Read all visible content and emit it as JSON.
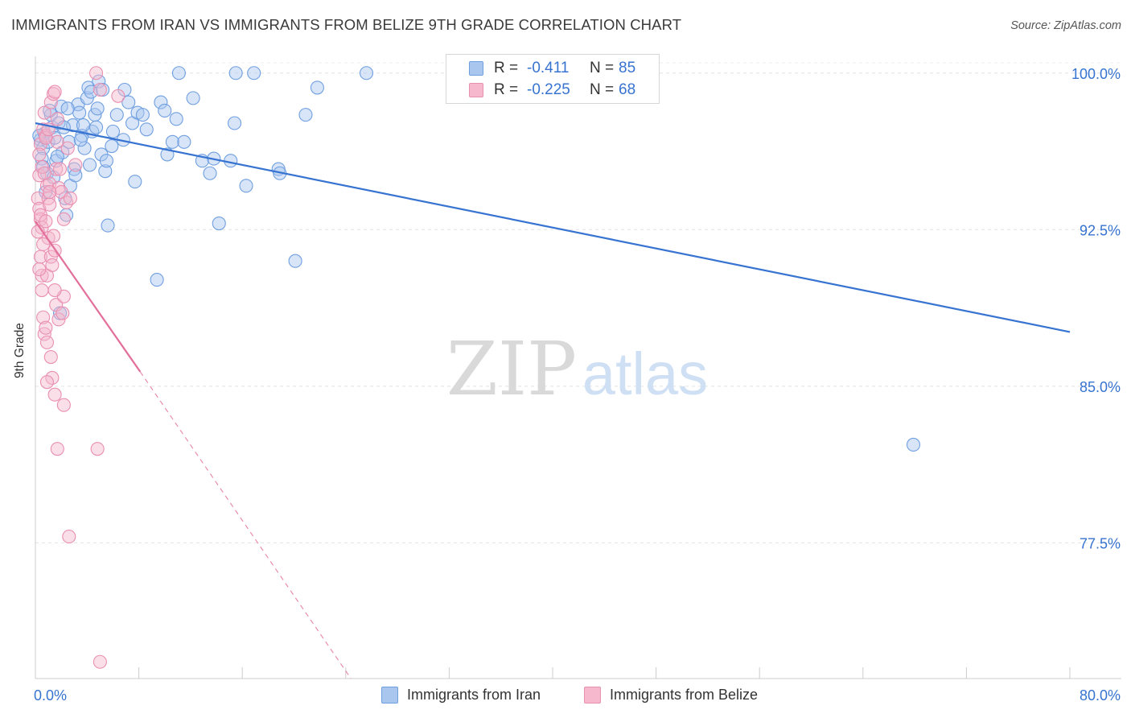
{
  "header": {
    "title": "IMMIGRANTS FROM IRAN VS IMMIGRANTS FROM BELIZE 9TH GRADE CORRELATION CHART",
    "source": "Source: ZipAtlas.com"
  },
  "watermark": {
    "zip": "ZIP",
    "atlas": "atlas"
  },
  "stats_box": {
    "rows": [
      {
        "r_label": "R =",
        "r_value": "-0.411",
        "n_label": "N =",
        "n_value": "85",
        "color": "#a9c6ef"
      },
      {
        "r_label": "R =",
        "r_value": "-0.225",
        "n_label": "N =",
        "n_value": "68",
        "color": "#f5b8cd"
      }
    ]
  },
  "legend": {
    "items": [
      {
        "label": "Immigrants from Iran",
        "color": "#a9c6ef"
      },
      {
        "label": "Immigrants from Belize",
        "color": "#f5b8cd"
      }
    ]
  },
  "chart_data": {
    "type": "scatter",
    "title": "IMMIGRANTS FROM IRAN VS IMMIGRANTS FROM BELIZE 9TH GRADE CORRELATION CHART",
    "xlabel": "",
    "ylabel": "9th Grade",
    "xlim": [
      0,
      80
    ],
    "ylim": [
      71.0,
      100.8
    ],
    "x_tick_labels": [
      "0.0%",
      "80.0%"
    ],
    "y_ticks": [
      77.5,
      85.0,
      92.5,
      100.0
    ],
    "y_tick_labels": [
      "77.5%",
      "85.0%",
      "92.5%",
      "100.0%"
    ],
    "grid": true,
    "legend_position": "bottom-center",
    "series": [
      {
        "name": "Immigrants from Iran",
        "color": "#6f9fe0",
        "fill": "#a9c6ef",
        "line_color": "#3773d0",
        "trend": {
          "x": [
            0,
            80
          ],
          "y": [
            97.6,
            87.6
          ],
          "style": "solid"
        },
        "points": [
          [
            0.4,
            96.8
          ],
          [
            0.6,
            96.4
          ],
          [
            0.5,
            95.9
          ],
          [
            0.7,
            97.1
          ],
          [
            0.9,
            95.2
          ],
          [
            1.0,
            96.7
          ],
          [
            1.2,
            98.0
          ],
          [
            1.3,
            97.4
          ],
          [
            1.5,
            96.9
          ],
          [
            1.6,
            95.8
          ],
          [
            1.8,
            97.6
          ],
          [
            2.0,
            98.4
          ],
          [
            2.1,
            96.2
          ],
          [
            2.3,
            94.0
          ],
          [
            2.4,
            93.2
          ],
          [
            2.6,
            96.7
          ],
          [
            2.7,
            94.6
          ],
          [
            2.9,
            97.5
          ],
          [
            3.0,
            95.4
          ],
          [
            3.1,
            95.1
          ],
          [
            3.3,
            98.5
          ],
          [
            3.4,
            98.1
          ],
          [
            3.6,
            97.0
          ],
          [
            3.8,
            96.4
          ],
          [
            4.0,
            98.8
          ],
          [
            4.1,
            99.3
          ],
          [
            4.3,
            99.1
          ],
          [
            4.4,
            97.2
          ],
          [
            4.6,
            98.0
          ],
          [
            4.7,
            97.4
          ],
          [
            4.9,
            99.6
          ],
          [
            5.1,
            96.1
          ],
          [
            5.2,
            99.2
          ],
          [
            5.4,
            95.3
          ],
          [
            5.5,
            95.8
          ],
          [
            5.6,
            92.7
          ],
          [
            6.0,
            97.2
          ],
          [
            6.3,
            98.0
          ],
          [
            6.8,
            96.8
          ],
          [
            6.9,
            99.2
          ],
          [
            7.2,
            98.6
          ],
          [
            7.5,
            97.6
          ],
          [
            7.7,
            94.8
          ],
          [
            7.9,
            98.1
          ],
          [
            8.3,
            98.0
          ],
          [
            8.6,
            97.3
          ],
          [
            9.4,
            90.1
          ],
          [
            9.7,
            98.6
          ],
          [
            10.0,
            98.2
          ],
          [
            10.2,
            96.1
          ],
          [
            10.6,
            96.7
          ],
          [
            10.9,
            97.8
          ],
          [
            11.1,
            100.0
          ],
          [
            11.5,
            96.7
          ],
          [
            12.2,
            98.8
          ],
          [
            12.9,
            95.8
          ],
          [
            13.5,
            95.2
          ],
          [
            13.8,
            95.9
          ],
          [
            14.2,
            92.8
          ],
          [
            15.1,
            95.8
          ],
          [
            15.4,
            97.6
          ],
          [
            16.3,
            94.6
          ],
          [
            15.5,
            100.0
          ],
          [
            16.9,
            100.0
          ],
          [
            18.8,
            95.4
          ],
          [
            18.9,
            95.2
          ],
          [
            20.1,
            91.0
          ],
          [
            20.9,
            98.0
          ],
          [
            21.8,
            99.3
          ],
          [
            25.6,
            100.0
          ],
          [
            1.1,
            98.2
          ],
          [
            1.7,
            96.0
          ],
          [
            2.2,
            97.4
          ],
          [
            0.8,
            94.3
          ],
          [
            1.4,
            95.0
          ],
          [
            1.9,
            88.5
          ],
          [
            3.5,
            96.8
          ],
          [
            0.3,
            97.0
          ],
          [
            2.5,
            98.3
          ],
          [
            3.7,
            97.5
          ],
          [
            4.2,
            95.6
          ],
          [
            4.8,
            98.3
          ],
          [
            5.9,
            96.5
          ],
          [
            67.9,
            82.2
          ],
          [
            0.6,
            95.5
          ]
        ]
      },
      {
        "name": "Immigrants from Belize",
        "color": "#e98fb1",
        "fill": "#f5b8cd",
        "line_color": "#e36f9b",
        "trend": {
          "x": [
            0,
            8.1
          ],
          "y": [
            92.9,
            85.7
          ],
          "style": "solid",
          "dashed_extension": {
            "x": [
              8.1,
              24.4
            ],
            "y": [
              85.7,
              71.0
            ]
          }
        },
        "points": [
          [
            0.2,
            94.0
          ],
          [
            0.3,
            93.5
          ],
          [
            0.4,
            93.0
          ],
          [
            0.5,
            92.6
          ],
          [
            0.3,
            95.1
          ],
          [
            0.4,
            96.6
          ],
          [
            0.6,
            97.3
          ],
          [
            0.7,
            98.1
          ],
          [
            0.8,
            97.0
          ],
          [
            0.9,
            94.6
          ],
          [
            1.0,
            94.0
          ],
          [
            1.1,
            94.7
          ],
          [
            1.2,
            98.6
          ],
          [
            1.4,
            99.0
          ],
          [
            1.5,
            99.1
          ],
          [
            1.6,
            95.4
          ],
          [
            1.7,
            96.7
          ],
          [
            1.8,
            94.5
          ],
          [
            2.0,
            94.3
          ],
          [
            2.2,
            93.0
          ],
          [
            2.4,
            93.8
          ],
          [
            0.4,
            91.2
          ],
          [
            0.5,
            90.3
          ],
          [
            0.5,
            89.6
          ],
          [
            0.6,
            88.3
          ],
          [
            0.7,
            87.5
          ],
          [
            0.8,
            87.8
          ],
          [
            0.9,
            90.3
          ],
          [
            1.0,
            92.1
          ],
          [
            1.2,
            91.2
          ],
          [
            1.3,
            90.8
          ],
          [
            1.5,
            91.5
          ],
          [
            1.6,
            88.9
          ],
          [
            1.8,
            88.2
          ],
          [
            2.1,
            88.5
          ],
          [
            2.2,
            89.3
          ],
          [
            1.3,
            85.4
          ],
          [
            1.5,
            84.6
          ],
          [
            1.7,
            82.0
          ],
          [
            2.2,
            84.1
          ],
          [
            2.6,
            77.8
          ],
          [
            4.8,
            82.0
          ],
          [
            5.0,
            71.8
          ],
          [
            0.3,
            96.1
          ],
          [
            0.5,
            95.5
          ],
          [
            0.8,
            96.9
          ],
          [
            1.1,
            93.7
          ],
          [
            1.2,
            86.4
          ],
          [
            1.9,
            95.4
          ],
          [
            0.2,
            92.4
          ],
          [
            0.6,
            91.8
          ],
          [
            0.9,
            87.1
          ],
          [
            1.4,
            92.2
          ],
          [
            2.7,
            94.0
          ],
          [
            3.1,
            95.6
          ],
          [
            1.0,
            97.3
          ],
          [
            1.7,
            97.8
          ],
          [
            0.7,
            95.2
          ],
          [
            2.5,
            96.4
          ],
          [
            4.7,
            100.0
          ],
          [
            5.0,
            99.2
          ],
          [
            6.4,
            98.9
          ],
          [
            1.1,
            94.3
          ],
          [
            0.4,
            93.2
          ],
          [
            0.8,
            92.9
          ],
          [
            0.3,
            90.6
          ],
          [
            1.5,
            89.6
          ],
          [
            0.9,
            85.2
          ]
        ]
      }
    ]
  }
}
